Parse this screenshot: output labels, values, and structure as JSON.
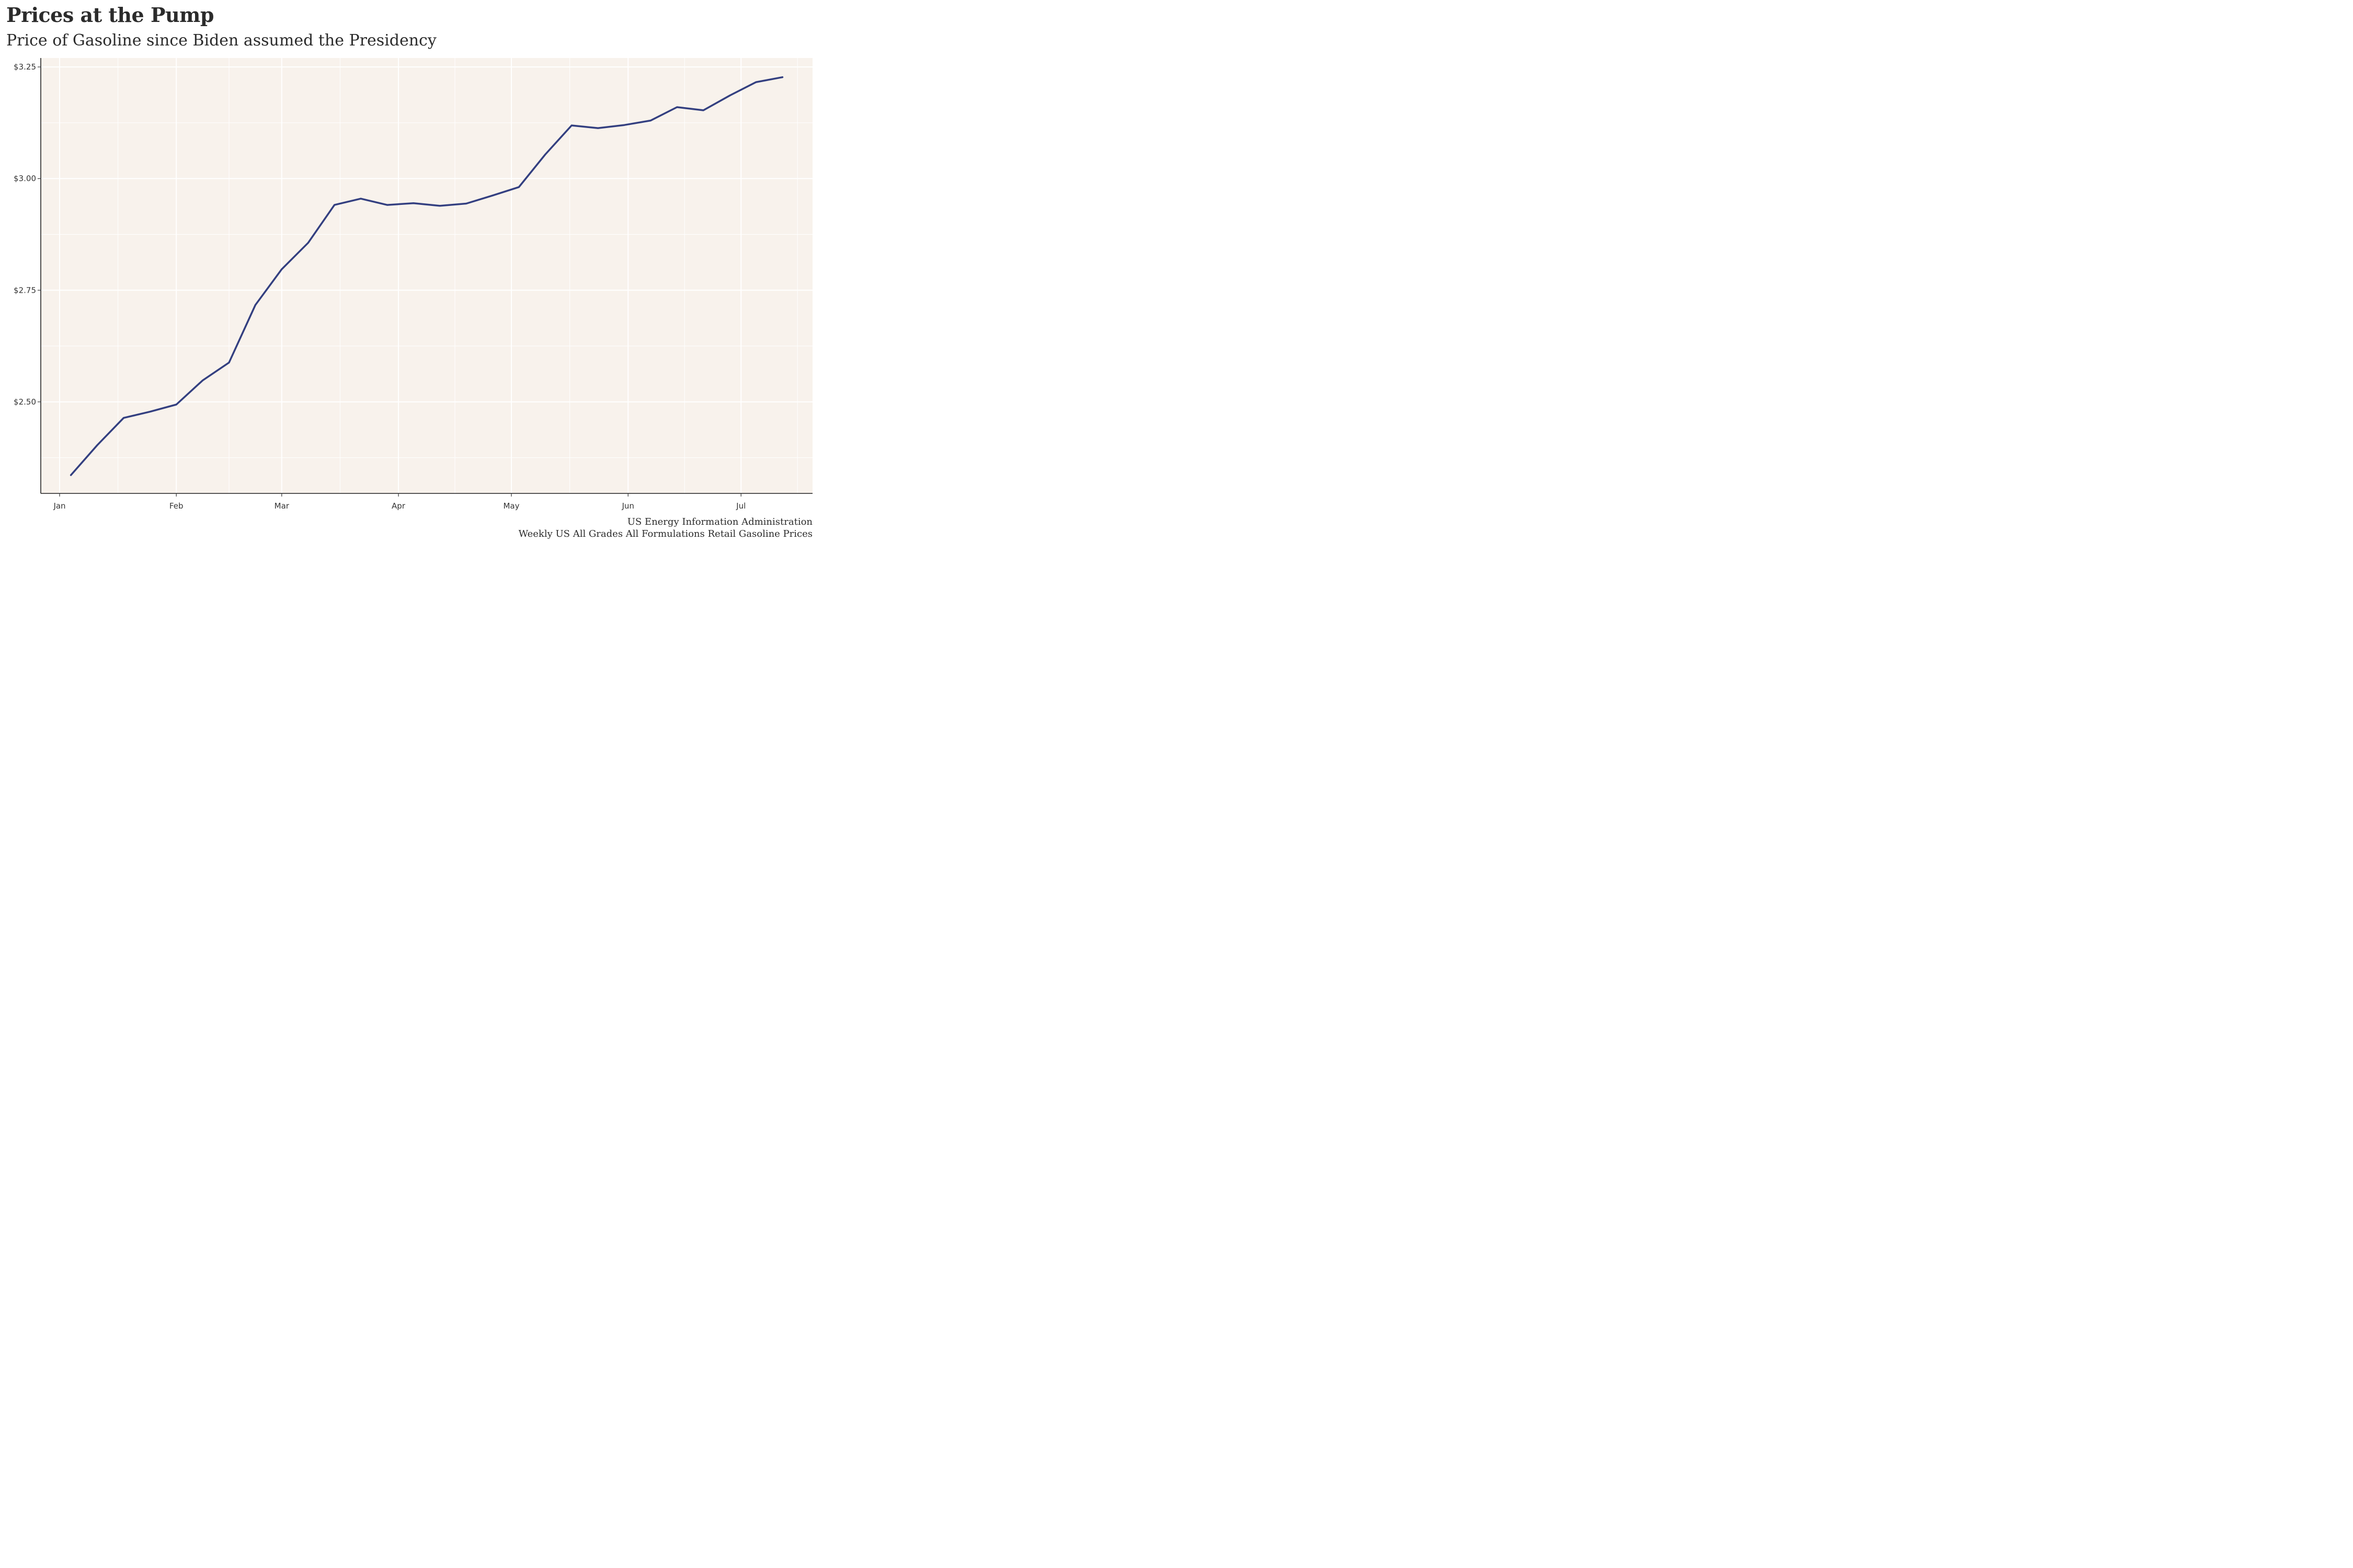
{
  "chart_data": {
    "type": "line",
    "title": "Prices at the Pump",
    "subtitle": "Price of Gasoline since Biden assumed the Presidency",
    "xlabel": "",
    "ylabel": "",
    "caption_lines": [
      "US Energy Information Administration",
      "Weekly US All Grades All Formulations Retail Gasoline Prices"
    ],
    "x_ticks": [
      {
        "date": "2021-01-01",
        "label": "Jan"
      },
      {
        "date": "2021-02-01",
        "label": "Feb"
      },
      {
        "date": "2021-03-01",
        "label": "Mar"
      },
      {
        "date": "2021-04-01",
        "label": "Apr"
      },
      {
        "date": "2021-05-01",
        "label": "May"
      },
      {
        "date": "2021-06-01",
        "label": "Jun"
      },
      {
        "date": "2021-07-01",
        "label": "Jul"
      }
    ],
    "y_ticks": [
      {
        "value": 2.5,
        "label": "$2.50"
      },
      {
        "value": 2.75,
        "label": "$2.75"
      },
      {
        "value": 3.0,
        "label": "$3.00"
      },
      {
        "value": 3.25,
        "label": "$3.25"
      }
    ],
    "xlim": [
      "2020-12-27",
      "2021-07-20"
    ],
    "ylim": [
      2.295,
      3.27
    ],
    "grid": true,
    "line_color": "#333f80",
    "panel_color": "#f8f2ec",
    "series": [
      {
        "x": [
          "2021-01-04",
          "2021-01-11",
          "2021-01-18",
          "2021-01-25",
          "2021-02-01",
          "2021-02-08",
          "2021-02-15",
          "2021-02-22",
          "2021-03-01",
          "2021-03-08",
          "2021-03-15",
          "2021-03-22",
          "2021-03-29",
          "2021-04-05",
          "2021-04-12",
          "2021-04-19",
          "2021-04-26",
          "2021-05-03",
          "2021-05-10",
          "2021-05-17",
          "2021-05-24",
          "2021-05-31",
          "2021-06-07",
          "2021-06-14",
          "2021-06-21",
          "2021-06-28",
          "2021-07-05",
          "2021-07-12"
        ],
        "y": [
          2.336,
          2.403,
          2.464,
          2.478,
          2.494,
          2.548,
          2.588,
          2.717,
          2.797,
          2.856,
          2.941,
          2.955,
          2.941,
          2.945,
          2.939,
          2.944,
          2.962,
          2.981,
          3.054,
          3.119,
          3.113,
          3.12,
          3.13,
          3.16,
          3.153,
          3.186,
          3.216,
          3.227
        ]
      }
    ]
  }
}
